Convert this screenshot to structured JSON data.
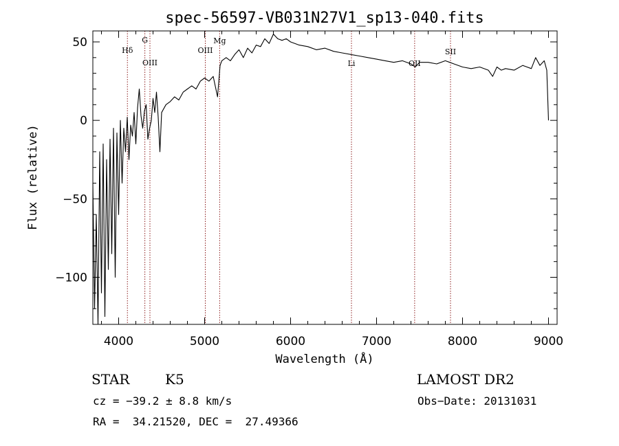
{
  "chart_data": {
    "type": "line",
    "title": "spec-56597-VB031N27V1_sp13-040.fits",
    "xlabel": "Wavelength (Å)",
    "ylabel": "Flux (relative)",
    "xlim": [
      3700,
      9100
    ],
    "ylim": [
      -130,
      57
    ],
    "xticks": [
      4000,
      5000,
      6000,
      7000,
      8000,
      9000
    ],
    "yticks": [
      -100,
      -50,
      0,
      50
    ],
    "grid": false,
    "line_color": "#000000",
    "marker_color": "#8b1a1a",
    "series": [
      {
        "x": [
          3700,
          3720,
          3740,
          3760,
          3780,
          3800,
          3820,
          3840,
          3860,
          3880,
          3900,
          3920,
          3940,
          3960,
          3980,
          4000,
          4020,
          4040,
          4060,
          4080,
          4100,
          4120,
          4140,
          4160,
          4180,
          4200,
          4220,
          4240,
          4260,
          4280,
          4300,
          4320,
          4340,
          4360,
          4380,
          4400,
          4420,
          4440,
          4460,
          4480,
          4500,
          4550,
          4600,
          4650,
          4700,
          4750,
          4800,
          4850,
          4900,
          4950,
          5000,
          5050,
          5100,
          5150,
          5180,
          5200,
          5250,
          5300,
          5350,
          5400,
          5450,
          5500,
          5550,
          5600,
          5650,
          5700,
          5750,
          5800,
          5850,
          5900,
          5950,
          6000,
          6100,
          6200,
          6300,
          6400,
          6500,
          6600,
          6700,
          6800,
          6900,
          7000,
          7100,
          7200,
          7300,
          7400,
          7450,
          7500,
          7600,
          7700,
          7800,
          7850,
          7900,
          8000,
          8100,
          8200,
          8300,
          8350,
          8400,
          8450,
          8500,
          8600,
          8700,
          8800,
          8850,
          8900,
          8950,
          8980,
          9000
        ],
        "y": [
          -40,
          -120,
          -60,
          -130,
          -20,
          -110,
          -15,
          -125,
          -25,
          -95,
          -12,
          -85,
          -5,
          -100,
          -8,
          -60,
          0,
          -40,
          -5,
          -20,
          2,
          -25,
          -3,
          -10,
          5,
          -15,
          8,
          20,
          3,
          -5,
          6,
          10,
          -12,
          -5,
          0,
          14,
          5,
          18,
          2,
          -20,
          5,
          10,
          12,
          15,
          13,
          18,
          20,
          22,
          20,
          25,
          27,
          25,
          28,
          15,
          35,
          38,
          40,
          38,
          42,
          45,
          40,
          46,
          43,
          48,
          47,
          52,
          49,
          55,
          52,
          51,
          52,
          50,
          48,
          47,
          45,
          46,
          44,
          43,
          42,
          41,
          40,
          39,
          38,
          37,
          38,
          36,
          34,
          37,
          37,
          36,
          38,
          37,
          36,
          34,
          33,
          34,
          32,
          28,
          34,
          32,
          33,
          32,
          35,
          33,
          40,
          35,
          38,
          32,
          0
        ]
      }
    ],
    "line_markers": [
      {
        "label": "Hδ",
        "x": 4102
      },
      {
        "label": "G",
        "x": 4305
      },
      {
        "label": "OIII",
        "x": 4364
      },
      {
        "label": "OIII",
        "x": 5008
      },
      {
        "label": "Mg",
        "x": 5175
      },
      {
        "label": "Li",
        "x": 6708
      },
      {
        "label": "OII",
        "x": 7443
      },
      {
        "label": "SII",
        "x": 7860
      }
    ]
  },
  "info": {
    "object_type": "STAR",
    "subclass": "K5",
    "survey": "LAMOST DR2",
    "redshift": "cz = −39.2 ± 8.8 km/s",
    "obs_date": "Obs−Date: 20131031",
    "coords": "RA =  34.21520, DEC =  27.49366"
  }
}
